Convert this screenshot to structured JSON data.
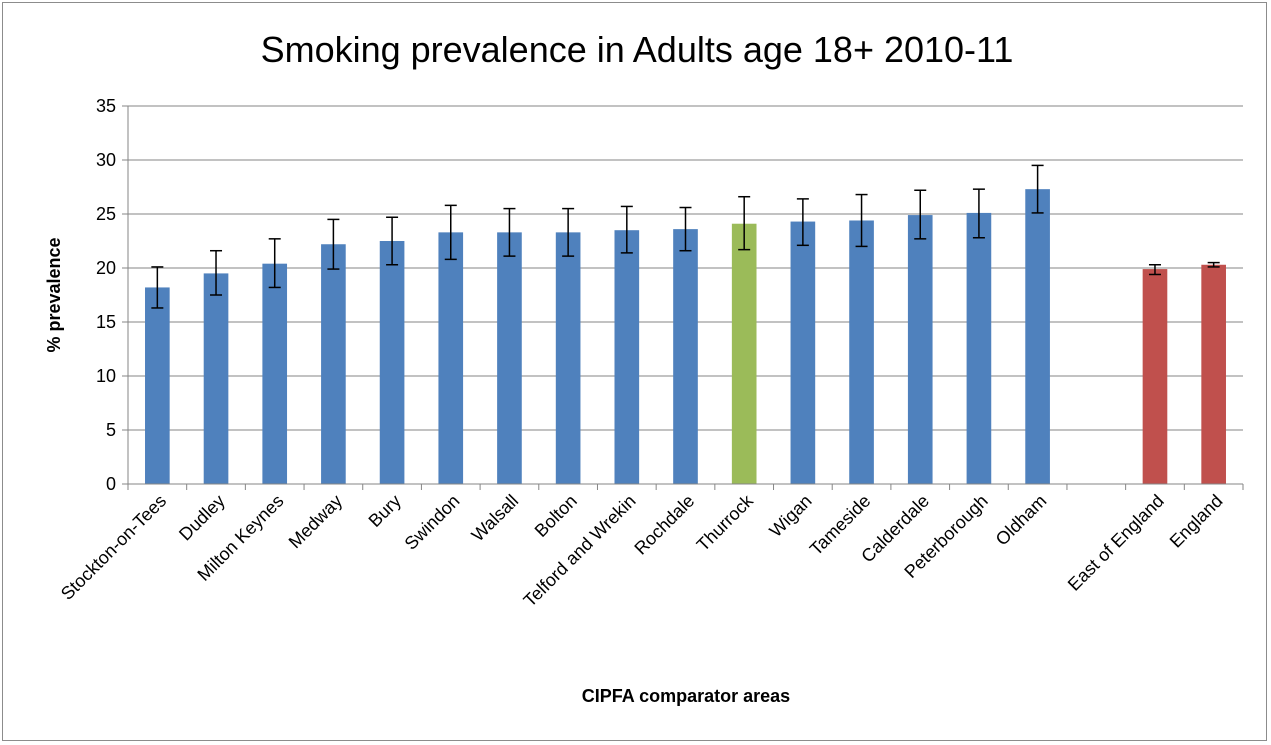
{
  "chart_data": {
    "type": "bar",
    "title": "Smoking prevalence in Adults age 18+ 2010-11",
    "xlabel": "CIPFA comparator areas",
    "ylabel": "% prevalence",
    "ylim": [
      0,
      35
    ],
    "yticks": [
      "0",
      "5",
      "10",
      "15",
      "20",
      "25",
      "30",
      "35"
    ],
    "grid": "horizontal",
    "error_bars": true,
    "categories": [
      "Stockton-on-Tees",
      "Dudley",
      "Milton Keynes",
      "Medway",
      "Bury",
      "Swindon",
      "Walsall",
      "Bolton",
      "Telford and Wrekin",
      "Rochdale",
      "Thurrock",
      "Wigan",
      "Tameside",
      "Calderdale",
      "Peterborough",
      "Oldham",
      "",
      "East of England",
      "England"
    ],
    "values": [
      18.2,
      19.5,
      20.4,
      22.2,
      22.5,
      23.3,
      23.3,
      23.3,
      23.5,
      23.6,
      24.1,
      24.3,
      24.4,
      24.9,
      25.1,
      27.3,
      null,
      19.9,
      20.3
    ],
    "lower": [
      16.3,
      17.5,
      18.2,
      19.9,
      20.3,
      20.8,
      21.1,
      21.1,
      21.4,
      21.6,
      21.7,
      22.1,
      22.0,
      22.7,
      22.8,
      25.1,
      null,
      19.4,
      20.1
    ],
    "upper": [
      20.1,
      21.6,
      22.7,
      24.5,
      24.7,
      25.8,
      25.5,
      25.5,
      25.7,
      25.6,
      26.6,
      26.4,
      26.8,
      27.2,
      27.3,
      29.5,
      null,
      20.3,
      20.5
    ],
    "bar_colors": [
      "#4f81bd",
      "#4f81bd",
      "#4f81bd",
      "#4f81bd",
      "#4f81bd",
      "#4f81bd",
      "#4f81bd",
      "#4f81bd",
      "#4f81bd",
      "#4f81bd",
      "#9bbb59",
      "#4f81bd",
      "#4f81bd",
      "#4f81bd",
      "#4f81bd",
      "#4f81bd",
      "#4f81bd",
      "#c0504d",
      "#c0504d"
    ],
    "colors": {
      "comparator": "#4f81bd",
      "highlight": "#9bbb59",
      "benchmark": "#c0504d",
      "gridline": "#868686",
      "error_bar": "#000000"
    }
  }
}
